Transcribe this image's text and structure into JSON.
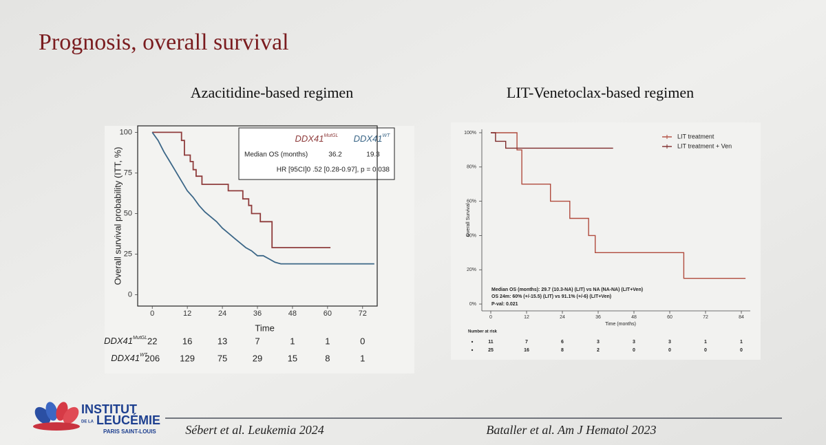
{
  "slide": {
    "title": "Prognosis, overall survival",
    "logo": {
      "line1": "INSTITUT",
      "line2": "DE LA",
      "line3": "LEUCÉMIE",
      "line4": "PARIS SAINT-LOUIS"
    },
    "citations": [
      "Sébert et al. Leukemia 2024",
      "Bataller et al. Am J Hematol 2023"
    ]
  },
  "chart_data": [
    {
      "type": "step",
      "title": "Azacitidine-based regimen",
      "x_label": "Time",
      "y_label": "Overall survival probability (ITT, %)",
      "xlim": [
        -5,
        77
      ],
      "ylim": [
        -7,
        104
      ],
      "xticks": [
        0,
        12,
        24,
        36,
        48,
        60,
        72
      ],
      "yticks": [
        0,
        25,
        50,
        75,
        100
      ],
      "series": [
        {
          "name": "DDX41",
          "name_superscript": "MutGL",
          "color": "#8e3b3b",
          "x": [
            0,
            10,
            10,
            11,
            11,
            13,
            13,
            14,
            14,
            15,
            15,
            17,
            17,
            26,
            26,
            31,
            31,
            33,
            33,
            34,
            34,
            37,
            37,
            41,
            41,
            61
          ],
          "values": [
            100,
            100,
            95,
            95,
            86,
            86,
            82,
            82,
            77,
            77,
            73,
            73,
            68,
            68,
            64,
            64,
            59,
            59,
            55,
            55,
            50,
            50,
            45,
            45,
            29,
            29
          ]
        },
        {
          "name": "DDX41",
          "name_superscript": "WT",
          "color": "#3b6687",
          "x": [
            0,
            2,
            4,
            6,
            8,
            10,
            12,
            14,
            16,
            18,
            20,
            22,
            24,
            26,
            28,
            30,
            32,
            34,
            36,
            38,
            40,
            42,
            44,
            76
          ],
          "values": [
            100,
            95,
            88,
            82,
            76,
            70,
            64,
            60,
            55,
            51,
            48,
            45,
            41,
            38,
            35,
            32,
            29,
            27,
            24,
            24,
            22,
            20,
            19,
            19
          ]
        }
      ],
      "annotation": {
        "median_label": "Median OS (months)",
        "medians": [
          36.2,
          19.3
        ],
        "hr": "HR [95CI]0 .52 [0.28-0.97], p = 0.038"
      },
      "risk_table": {
        "counts": [
          [
            22,
            16,
            13,
            7,
            1,
            1,
            0
          ],
          [
            206,
            129,
            75,
            29,
            15,
            8,
            1
          ]
        ]
      }
    },
    {
      "type": "step",
      "title": "LIT-Venetoclax-based regimen",
      "x_label": "Time (months)",
      "y_label": "Overall Survival",
      "xlim": [
        -3,
        87
      ],
      "ylim": [
        -4,
        102
      ],
      "xticks": [
        0,
        12,
        24,
        36,
        48,
        60,
        72,
        84
      ],
      "yticks": [
        {
          "value": 0,
          "label": "0%"
        },
        {
          "value": 20,
          "label": "20%"
        },
        {
          "value": 40,
          "label": "40%"
        },
        {
          "value": 60,
          "label": "60%"
        },
        {
          "value": 80,
          "label": "80%"
        },
        {
          "value": 100,
          "label": "100%"
        }
      ],
      "legend": "upper right",
      "series": [
        {
          "name": "LIT treatment",
          "color": "#b04a3c",
          "x": [
            0,
            8.8,
            8.8,
            10.4,
            10.4,
            20,
            20,
            26.5,
            26.5,
            32.8,
            32.8,
            35,
            35,
            64.7,
            64.7,
            85.4
          ],
          "values": [
            100,
            100,
            90,
            90,
            70,
            70,
            60,
            60,
            50,
            50,
            40,
            40,
            30,
            30,
            15,
            15
          ]
        },
        {
          "name": "LIT treatment + Ven",
          "color": "#7d2a2a",
          "x": [
            0,
            1.6,
            1.6,
            5,
            5,
            41
          ],
          "values": [
            100,
            100,
            95,
            95,
            91,
            91
          ]
        }
      ],
      "annotation": {
        "lines": [
          "Median  OS (months): 29.7 (10.3-NA) (LIT) vs NA (NA-NA) (LIT+Ven)",
          "OS 24m: 60% (+/-15.5) (LIT) vs 91.1% (+/-6) (LIT+Ven)",
          "P-val: 0.021"
        ]
      },
      "risk_table": {
        "title": "Number at risk",
        "counts": [
          [
            11,
            7,
            6,
            3,
            3,
            3,
            1,
            1
          ],
          [
            25,
            16,
            8,
            2,
            0,
            0,
            0,
            0
          ]
        ]
      }
    }
  ]
}
